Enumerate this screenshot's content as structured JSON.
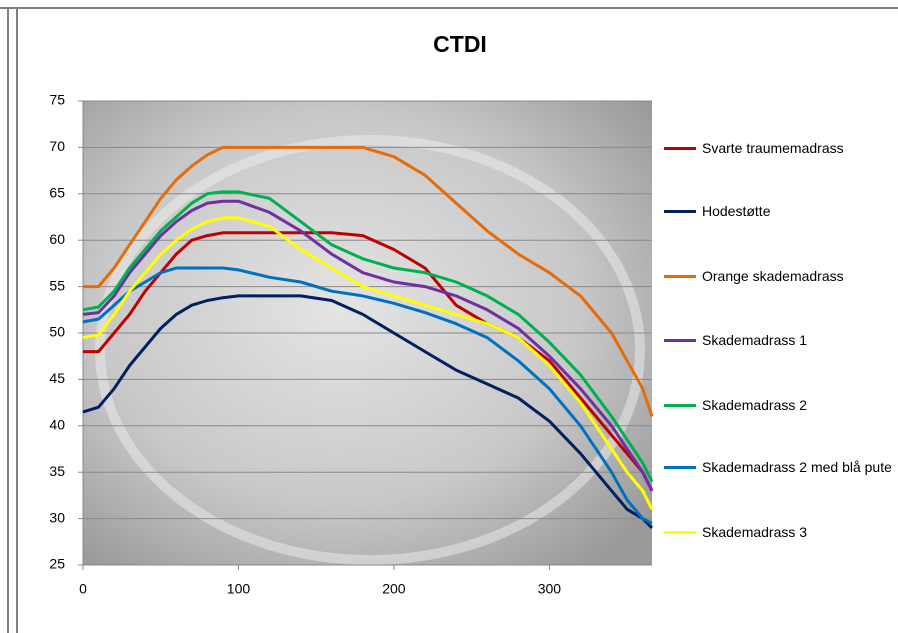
{
  "chart_data": {
    "type": "line",
    "title": "CTDI",
    "x": [
      0,
      10,
      20,
      30,
      40,
      50,
      60,
      70,
      80,
      90,
      100,
      120,
      140,
      160,
      180,
      200,
      220,
      240,
      260,
      280,
      300,
      320,
      340,
      350,
      360,
      366
    ],
    "xlim": [
      0,
      366
    ],
    "xticks": [
      0,
      100,
      200,
      300
    ],
    "ylim": [
      25,
      75
    ],
    "yticks": [
      25,
      30,
      35,
      40,
      45,
      50,
      55,
      60,
      65,
      70,
      75
    ],
    "grid": true,
    "legend": "right",
    "series": [
      {
        "name": "Svarte traumemadrass",
        "color": "#c00000",
        "values": [
          48,
          48,
          50,
          52,
          54.5,
          56.5,
          58.5,
          60,
          60.5,
          60.8,
          60.8,
          60.8,
          60.8,
          60.8,
          60.5,
          59,
          57,
          53,
          51,
          49.5,
          47,
          43,
          39,
          37,
          35,
          33
        ]
      },
      {
        "name": "Hodestøtte",
        "color": "#002060",
        "values": [
          41.5,
          42,
          44,
          46.5,
          48.5,
          50.5,
          52,
          53,
          53.5,
          53.8,
          54,
          54,
          54,
          53.5,
          52,
          50,
          48,
          46,
          44.5,
          43,
          40.5,
          37,
          33,
          31,
          30,
          29
        ]
      },
      {
        "name": "Orange skademadrass",
        "color": "#e46c0a",
        "values": [
          55,
          55,
          57,
          59.5,
          62,
          64.5,
          66.5,
          68,
          69.2,
          70,
          70,
          70,
          70,
          70,
          70,
          69,
          67,
          64,
          61,
          58.5,
          56.5,
          54,
          50,
          47,
          44,
          41
        ]
      },
      {
        "name": "Skademadrass 1",
        "color": "#7030a0",
        "values": [
          52,
          52.2,
          54,
          56.5,
          58.5,
          60.5,
          62,
          63.2,
          64,
          64.2,
          64.2,
          63,
          61,
          58.5,
          56.5,
          55.5,
          55,
          54,
          52.5,
          50.5,
          47.5,
          44,
          40,
          37.5,
          35,
          33
        ]
      },
      {
        "name": "Skademadrass 2",
        "color": "#00b050",
        "values": [
          52.5,
          52.8,
          54.5,
          57,
          59,
          61,
          62.5,
          64,
          65,
          65.2,
          65.2,
          64.5,
          62,
          59.5,
          58,
          57,
          56.5,
          55.5,
          54,
          52,
          49,
          45.5,
          41,
          38.5,
          36,
          34
        ]
      },
      {
        "name": "Skademadrass 2 med blå pute",
        "color": "#0070c0",
        "values": [
          51.2,
          51.5,
          53,
          54.5,
          55.5,
          56.5,
          57,
          57,
          57,
          57,
          56.8,
          56,
          55.5,
          54.5,
          54,
          53.2,
          52.2,
          51,
          49.5,
          47,
          44,
          40,
          35,
          32,
          30,
          29.5
        ]
      },
      {
        "name": "Skademadrass 3",
        "color": "#ffff00",
        "values": [
          49.5,
          49.8,
          52,
          54.5,
          56.5,
          58.5,
          60,
          61.2,
          62,
          62.4,
          62.4,
          61.5,
          59,
          57,
          55,
          54,
          53,
          52,
          51,
          49.5,
          46.5,
          42.5,
          37.5,
          35,
          33,
          31
        ]
      }
    ]
  }
}
